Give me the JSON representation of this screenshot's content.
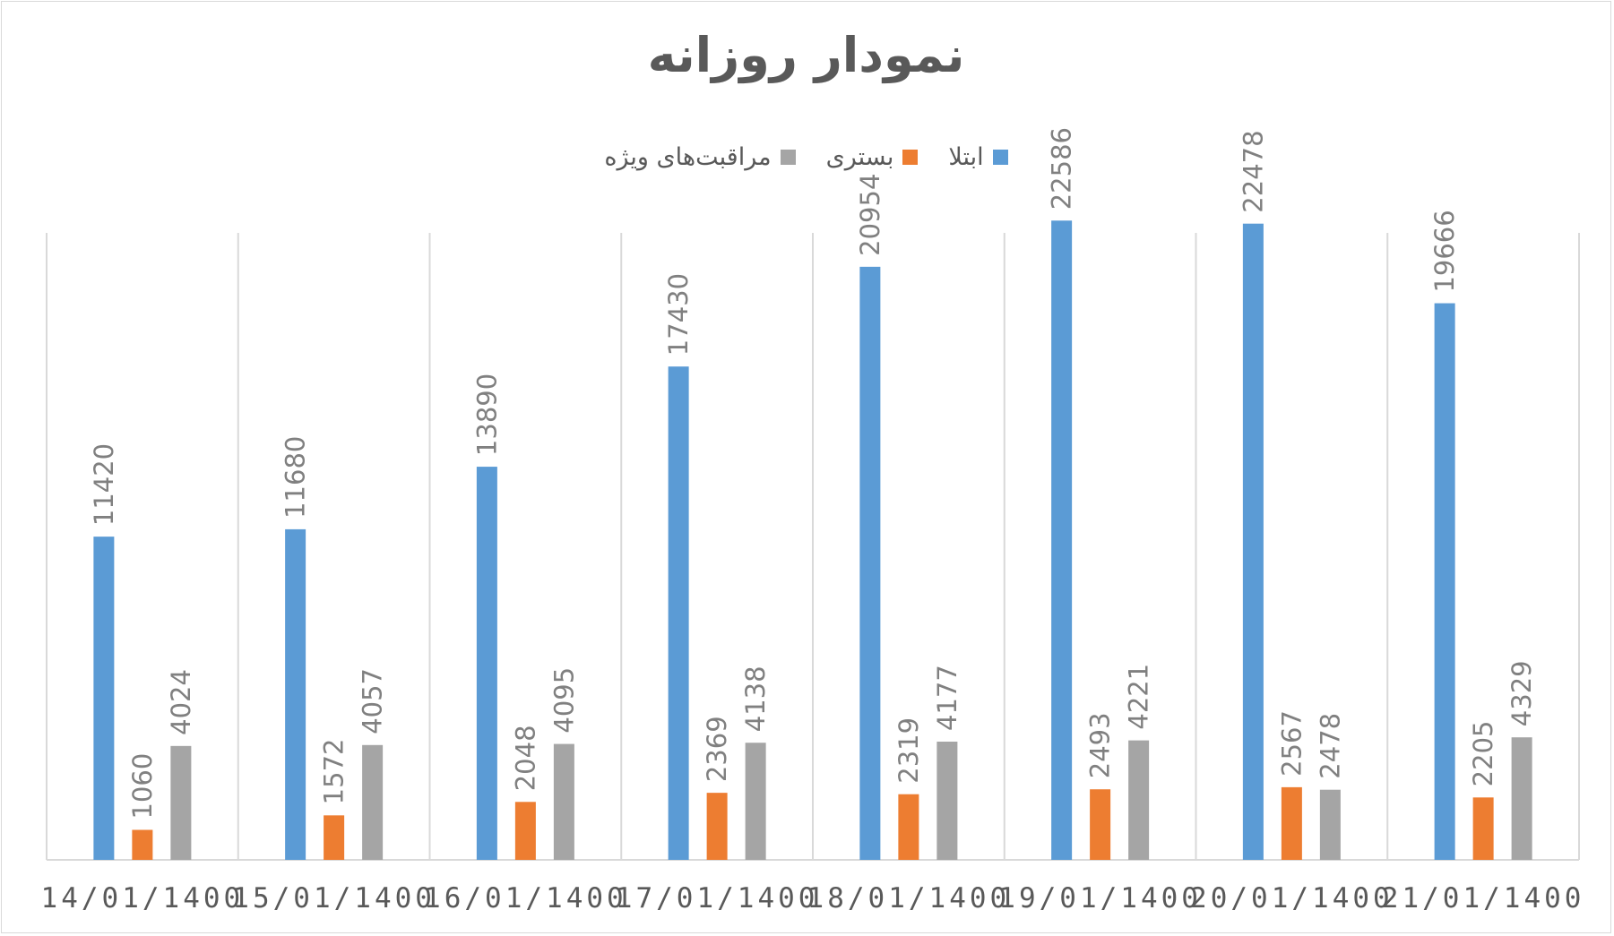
{
  "chart_data": {
    "type": "bar",
    "title": "نمودار روزانه",
    "categories": [
      "14/01/1400",
      "15/01/1400",
      "16/01/1400",
      "17/01/1400",
      "18/01/1400",
      "19/01/1400",
      "20/01/1400",
      "21/01/1400"
    ],
    "series": [
      {
        "name": "ابتلا",
        "color": "#5b9bd5",
        "values": [
          11420,
          11680,
          13890,
          17430,
          20954,
          22586,
          22478,
          19666
        ]
      },
      {
        "name": "بستری",
        "color": "#ed7d31",
        "values": [
          1060,
          1572,
          2048,
          2369,
          2319,
          2493,
          2567,
          2205
        ]
      },
      {
        "name": "مراقبت‌های ویژه",
        "color": "#a5a5a5",
        "values": [
          4024,
          4057,
          4095,
          4138,
          4177,
          4221,
          2478,
          4329
        ]
      }
    ],
    "ylim": [
      0,
      25000
    ],
    "grid": "vertical",
    "legend_position": "top",
    "data_labels": true
  }
}
